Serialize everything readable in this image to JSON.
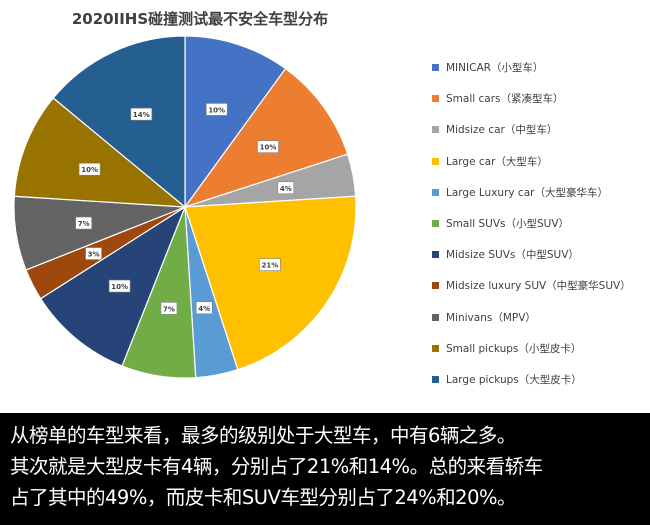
{
  "chart_data": {
    "type": "pie",
    "title": "2020IIHS碰撞测试最不安全车型分布",
    "legend_position": "right",
    "slices": [
      {
        "name": "MINICAR（小型车）",
        "value": 10,
        "label": "10%",
        "color": "#4472c4"
      },
      {
        "name": "Small cars（紧凑型车）",
        "value": 10,
        "label": "10%",
        "color": "#ed7d31"
      },
      {
        "name": "Midsize car（中型车）",
        "value": 4,
        "label": "4%",
        "color": "#a5a5a5"
      },
      {
        "name": "Large car（大型车）",
        "value": 21,
        "label": "21%",
        "color": "#ffc000"
      },
      {
        "name": "Large Luxury car（大型豪华车）",
        "value": 4,
        "label": "4%",
        "color": "#5b9bd5"
      },
      {
        "name": "Small SUVs（小型SUV）",
        "value": 7,
        "label": "7%",
        "color": "#70ad47"
      },
      {
        "name": "Midsize SUVs（中型SUV）",
        "value": 10,
        "label": "10%",
        "color": "#264478"
      },
      {
        "name": "Midsize luxury SUV（中型豪华SUV）",
        "value": 3,
        "label": "3%",
        "color": "#9e480e"
      },
      {
        "name": "Minivans（MPV）",
        "value": 7,
        "label": "7%",
        "color": "#636363"
      },
      {
        "name": "Small pickups（小型皮卡）",
        "value": 10,
        "label": "10%",
        "color": "#997300"
      },
      {
        "name": "Large pickups（大型皮卡）",
        "value": 14,
        "label": "14%",
        "color": "#255e91"
      }
    ]
  },
  "caption": {
    "lines": [
      "从榜单的车型来看，最多的级别处于大型车，中有6辆之多。",
      "其次就是大型皮卡有4辆，分别占了21%和14%。总的来看轿车",
      "占了其中的49%，而皮卡和SUV车型分别占了24%和20%。"
    ]
  }
}
